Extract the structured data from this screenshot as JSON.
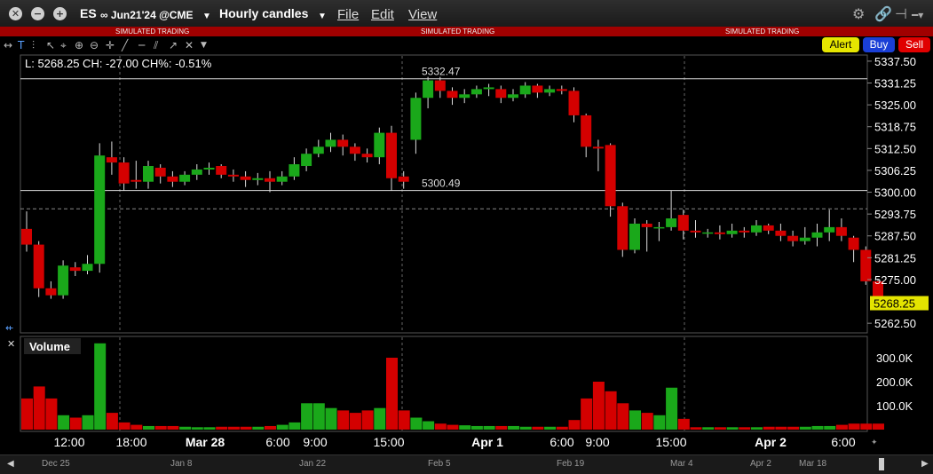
{
  "titlebar": {
    "symbol": "ES",
    "contract": "∞ Jun21'24 @CME",
    "timeframe": "Hourly candles",
    "menus": [
      "File",
      "Edit",
      "View"
    ]
  },
  "sim_banner": [
    "SIMULATED TRADING",
    "SIMULATED TRADING",
    "SIMULATED TRADING"
  ],
  "order_buttons": {
    "alert": "Alert",
    "buy": "Buy",
    "sell": "Sell"
  },
  "colors": {
    "up": "#1aa81a",
    "down": "#d40000",
    "sim_bar": "#a00000",
    "last_price_bg": "#e4e400"
  },
  "price_panel": {
    "info": "L: 5268.25 CH: -27.00 CH%: -0.51%",
    "high_line": "5332.47",
    "low_line": "5300.49",
    "last_price": "5268.25",
    "y_ticks": [
      "5337.50",
      "5331.25",
      "5325.00",
      "5318.75",
      "5312.50",
      "5306.25",
      "5300.00",
      "5293.75",
      "5287.50",
      "5281.25",
      "5275.00",
      "5262.50"
    ]
  },
  "volume_panel": {
    "title": "Volume",
    "y_ticks": [
      "300.0K",
      "200.0K",
      "100.0K"
    ]
  },
  "x_axis": [
    "12:00",
    "18:00",
    "Mar 28",
    "6:00",
    "9:00",
    "15:00",
    "Apr 1",
    "6:00",
    "9:00",
    "15:00",
    "Apr 2",
    "6:00"
  ],
  "navigator_labels": [
    "Dec 25",
    "Jan 8",
    "Jan 22",
    "Feb 5",
    "Feb 19",
    "Mar 4",
    "Apr 2",
    "Mar 18"
  ],
  "chart_data": {
    "type": "candlestick",
    "y_range": [
      5260,
      5339
    ],
    "volume_range": [
      0,
      300000
    ],
    "candles": [
      {
        "o": 5289.5,
        "c": 5285.0,
        "h": 5294.5,
        "l": 5283.0,
        "v": 130000
      },
      {
        "o": 5285.0,
        "c": 5272.5,
        "h": 5286.0,
        "l": 5270.0,
        "v": 180000
      },
      {
        "o": 5272.5,
        "c": 5270.5,
        "h": 5274.5,
        "l": 5269.5,
        "v": 130000
      },
      {
        "o": 5270.5,
        "c": 5279.0,
        "h": 5280.5,
        "l": 5269.5,
        "v": 60000
      },
      {
        "o": 5278.5,
        "c": 5277.5,
        "h": 5280.0,
        "l": 5276.0,
        "v": 50000
      },
      {
        "o": 5277.5,
        "c": 5279.5,
        "h": 5282.0,
        "l": 5276.5,
        "v": 60000
      },
      {
        "o": 5279.5,
        "c": 5310.5,
        "h": 5314.0,
        "l": 5277.0,
        "v": 360000
      },
      {
        "o": 5310.0,
        "c": 5308.5,
        "h": 5314.5,
        "l": 5305.0,
        "v": 70000
      },
      {
        "o": 5308.5,
        "c": 5302.5,
        "h": 5310.0,
        "l": 5300.5,
        "v": 30000
      },
      {
        "o": 5303.5,
        "c": 5303.0,
        "h": 5309.0,
        "l": 5301.0,
        "v": 20000
      },
      {
        "o": 5303.0,
        "c": 5307.5,
        "h": 5309.0,
        "l": 5301.0,
        "v": 15000
      },
      {
        "o": 5307.0,
        "c": 5304.5,
        "h": 5308.0,
        "l": 5302.5,
        "v": 15000
      },
      {
        "o": 5304.5,
        "c": 5303.0,
        "h": 5306.0,
        "l": 5301.5,
        "v": 15000
      },
      {
        "o": 5303.0,
        "c": 5305.0,
        "h": 5306.0,
        "l": 5302.0,
        "v": 12000
      },
      {
        "o": 5305.0,
        "c": 5306.5,
        "h": 5308.0,
        "l": 5303.5,
        "v": 10000
      },
      {
        "o": 5306.5,
        "c": 5307.0,
        "h": 5308.5,
        "l": 5305.0,
        "v": 10000
      },
      {
        "o": 5307.5,
        "c": 5305.0,
        "h": 5308.0,
        "l": 5304.0,
        "v": 12000
      },
      {
        "o": 5305.0,
        "c": 5304.5,
        "h": 5306.5,
        "l": 5303.0,
        "v": 12000
      },
      {
        "o": 5304.5,
        "c": 5303.5,
        "h": 5306.0,
        "l": 5301.5,
        "v": 12000
      },
      {
        "o": 5303.5,
        "c": 5304.0,
        "h": 5305.5,
        "l": 5302.0,
        "v": 12000
      },
      {
        "o": 5304.0,
        "c": 5303.0,
        "h": 5306.0,
        "l": 5300.0,
        "v": 15000
      },
      {
        "o": 5303.0,
        "c": 5304.5,
        "h": 5306.0,
        "l": 5302.0,
        "v": 20000
      },
      {
        "o": 5304.5,
        "c": 5308.0,
        "h": 5310.0,
        "l": 5303.5,
        "v": 30000
      },
      {
        "o": 5307.5,
        "c": 5311.0,
        "h": 5312.5,
        "l": 5306.0,
        "v": 110000
      },
      {
        "o": 5311.0,
        "c": 5313.0,
        "h": 5315.0,
        "l": 5310.0,
        "v": 110000
      },
      {
        "o": 5313.0,
        "c": 5315.0,
        "h": 5317.0,
        "l": 5311.5,
        "v": 90000
      },
      {
        "o": 5315.0,
        "c": 5313.0,
        "h": 5316.5,
        "l": 5310.5,
        "v": 80000
      },
      {
        "o": 5313.0,
        "c": 5311.0,
        "h": 5314.0,
        "l": 5309.0,
        "v": 70000
      },
      {
        "o": 5311.0,
        "c": 5310.0,
        "h": 5312.5,
        "l": 5308.5,
        "v": 80000
      },
      {
        "o": 5310.0,
        "c": 5317.0,
        "h": 5318.5,
        "l": 5308.0,
        "v": 90000
      },
      {
        "o": 5317.0,
        "c": 5304.0,
        "h": 5319.0,
        "l": 5300.5,
        "v": 300000
      },
      {
        "o": 5304.5,
        "c": 5303.0,
        "h": 5306.0,
        "l": 5301.0,
        "v": 80000
      },
      {
        "o": 5315.0,
        "c": 5327.0,
        "h": 5328.5,
        "l": 5311.0,
        "v": 50000
      },
      {
        "o": 5327.0,
        "c": 5332.0,
        "h": 5333.0,
        "l": 5324.0,
        "v": 35000
      },
      {
        "o": 5332.0,
        "c": 5329.0,
        "h": 5333.0,
        "l": 5327.0,
        "v": 25000
      },
      {
        "o": 5329.0,
        "c": 5327.0,
        "h": 5330.0,
        "l": 5325.0,
        "v": 20000
      },
      {
        "o": 5327.0,
        "c": 5328.0,
        "h": 5329.5,
        "l": 5325.5,
        "v": 18000
      },
      {
        "o": 5328.0,
        "c": 5329.5,
        "h": 5330.5,
        "l": 5327.0,
        "v": 15000
      },
      {
        "o": 5329.5,
        "c": 5330.0,
        "h": 5331.0,
        "l": 5327.5,
        "v": 15000
      },
      {
        "o": 5329.5,
        "c": 5327.0,
        "h": 5330.5,
        "l": 5325.5,
        "v": 15000
      },
      {
        "o": 5327.0,
        "c": 5328.0,
        "h": 5329.5,
        "l": 5326.0,
        "v": 15000
      },
      {
        "o": 5328.0,
        "c": 5330.5,
        "h": 5331.5,
        "l": 5327.0,
        "v": 12000
      },
      {
        "o": 5330.5,
        "c": 5328.5,
        "h": 5331.0,
        "l": 5327.0,
        "v": 12000
      },
      {
        "o": 5328.5,
        "c": 5329.5,
        "h": 5330.5,
        "l": 5327.5,
        "v": 12000
      },
      {
        "o": 5329.5,
        "c": 5329.0,
        "h": 5330.5,
        "l": 5328.0,
        "v": 12000
      },
      {
        "o": 5329.0,
        "c": 5322.0,
        "h": 5330.0,
        "l": 5320.0,
        "v": 40000
      },
      {
        "o": 5322.0,
        "c": 5313.0,
        "h": 5322.5,
        "l": 5310.0,
        "v": 130000
      },
      {
        "o": 5313.0,
        "c": 5312.5,
        "h": 5315.0,
        "l": 5306.0,
        "v": 200000
      },
      {
        "o": 5313.5,
        "c": 5296.0,
        "h": 5314.0,
        "l": 5293.0,
        "v": 160000
      },
      {
        "o": 5296.0,
        "c": 5283.5,
        "h": 5297.0,
        "l": 5281.5,
        "v": 110000
      },
      {
        "o": 5283.5,
        "c": 5291.0,
        "h": 5292.5,
        "l": 5282.5,
        "v": 80000
      },
      {
        "o": 5291.0,
        "c": 5290.0,
        "h": 5292.0,
        "l": 5283.0,
        "v": 70000
      },
      {
        "o": 5290.0,
        "c": 5290.0,
        "h": 5291.5,
        "l": 5286.0,
        "v": 60000
      },
      {
        "o": 5290.0,
        "c": 5292.5,
        "h": 5300.5,
        "l": 5289.0,
        "v": 175000
      },
      {
        "o": 5293.5,
        "c": 5289.0,
        "h": 5295.0,
        "l": 5286.5,
        "v": 45000
      },
      {
        "o": 5289.0,
        "c": 5288.5,
        "h": 5292.0,
        "l": 5287.0,
        "v": 10000
      },
      {
        "o": 5288.5,
        "c": 5288.5,
        "h": 5289.5,
        "l": 5287.0,
        "v": 10000
      },
      {
        "o": 5288.5,
        "c": 5288.0,
        "h": 5290.5,
        "l": 5286.5,
        "v": 10000
      },
      {
        "o": 5288.0,
        "c": 5289.0,
        "h": 5291.0,
        "l": 5287.0,
        "v": 10000
      },
      {
        "o": 5289.0,
        "c": 5288.5,
        "h": 5290.0,
        "l": 5287.0,
        "v": 10000
      },
      {
        "o": 5288.5,
        "c": 5290.5,
        "h": 5292.0,
        "l": 5287.5,
        "v": 10000
      },
      {
        "o": 5290.5,
        "c": 5289.0,
        "h": 5291.0,
        "l": 5288.0,
        "v": 12000
      },
      {
        "o": 5289.0,
        "c": 5287.5,
        "h": 5291.0,
        "l": 5286.0,
        "v": 12000
      },
      {
        "o": 5287.5,
        "c": 5286.0,
        "h": 5289.0,
        "l": 5284.5,
        "v": 12000
      },
      {
        "o": 5286.0,
        "c": 5287.0,
        "h": 5290.0,
        "l": 5285.0,
        "v": 12000
      },
      {
        "o": 5287.0,
        "c": 5288.5,
        "h": 5291.0,
        "l": 5284.5,
        "v": 15000
      },
      {
        "o": 5288.5,
        "c": 5290.0,
        "h": 5295.0,
        "l": 5286.0,
        "v": 15000
      },
      {
        "o": 5290.0,
        "c": 5287.5,
        "h": 5292.5,
        "l": 5286.0,
        "v": 20000
      },
      {
        "o": 5287.0,
        "c": 5283.5,
        "h": 5287.5,
        "l": 5280.0,
        "v": 25000
      },
      {
        "o": 5283.5,
        "c": 5274.5,
        "h": 5284.5,
        "l": 5273.5,
        "v": 25000
      },
      {
        "o": 5274.5,
        "c": 5268.25,
        "h": 5275.0,
        "l": 5267.5,
        "v": 25000
      }
    ]
  }
}
